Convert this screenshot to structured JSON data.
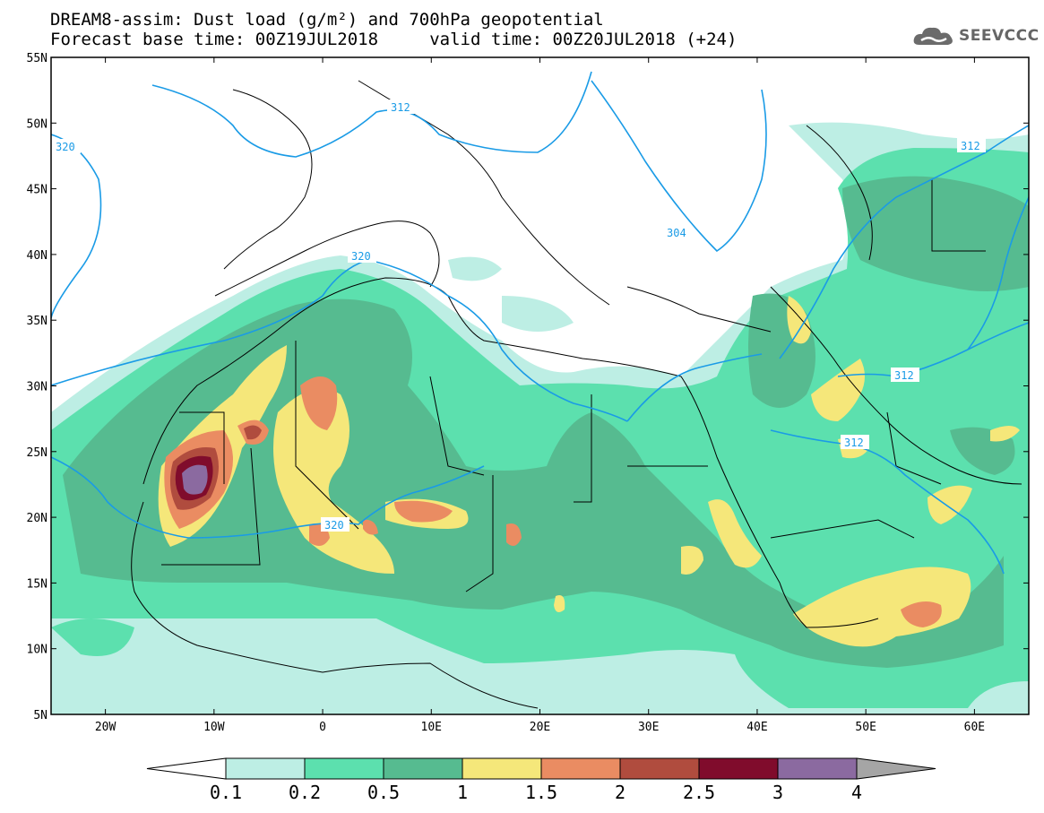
{
  "title": {
    "line1": "DREAM8-assim: Dust load (g/m²) and 700hPa geopotential",
    "line2": "Forecast base time: 00Z19JUL2018     valid time: 00Z20JUL2018 (+24)"
  },
  "logo": {
    "text": "SEEVCCC",
    "icon": "cloud-logo-icon"
  },
  "map": {
    "lon_range": [
      -25,
      65
    ],
    "lat_range": [
      5,
      55
    ],
    "lat_ticks": [
      "55N",
      "50N",
      "45N",
      "40N",
      "35N",
      "30N",
      "25N",
      "20N",
      "15N",
      "10N",
      "5N"
    ],
    "lon_ticks": [
      "20W",
      "10W",
      "0",
      "10E",
      "20E",
      "30E",
      "40E",
      "50E",
      "60E"
    ],
    "contour_labels": [
      "312",
      "320",
      "304",
      "320",
      "320",
      "312",
      "312",
      "312"
    ],
    "contour_color": "#1a9be6"
  },
  "colorbar": {
    "labels": [
      "0.1",
      "0.2",
      "0.5",
      "1",
      "1.5",
      "2",
      "2.5",
      "3",
      "4"
    ],
    "colors": [
      "#ffffff",
      "#bdeee4",
      "#5ce0ae",
      "#56bb90",
      "#f5e77a",
      "#ea8c62",
      "#b04c3e",
      "#800c2c",
      "#8b6aa0",
      "#a5a5a5"
    ]
  }
}
